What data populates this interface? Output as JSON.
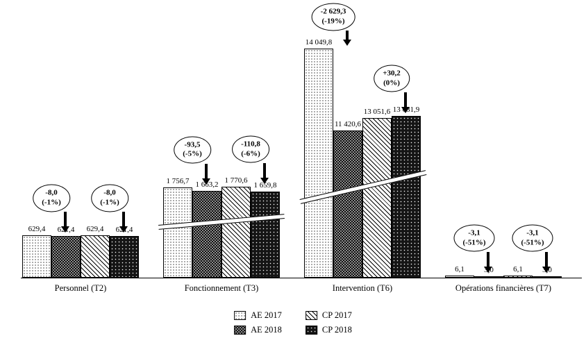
{
  "chart_data": {
    "type": "bar",
    "title": "",
    "categories": [
      "Personnel (T2)",
      "Fonctionnement (T3)",
      "Intervention (T6)",
      "Opérations financières (T7)"
    ],
    "series": [
      {
        "name": "AE 2017",
        "pattern": "ae2017",
        "values": [
          629.4,
          1756.7,
          14049.8,
          6.1
        ],
        "labels": [
          "629,4",
          "1 756,7",
          "14 049,8",
          "6,1"
        ]
      },
      {
        "name": "AE 2018",
        "pattern": "ae2018",
        "values": [
          621.4,
          1663.2,
          11420.6,
          3.0
        ],
        "labels": [
          "621,4",
          "1 663,2",
          "11 420,6",
          "3,0"
        ]
      },
      {
        "name": "CP 2017",
        "pattern": "cp2017",
        "values": [
          629.4,
          1770.6,
          13051.6,
          6.1
        ],
        "labels": [
          "629,4",
          "1 770,6",
          "13 051,6",
          "6,1"
        ]
      },
      {
        "name": "CP 2018",
        "pattern": "cp2018",
        "values": [
          621.4,
          1659.8,
          13081.9,
          3.0
        ],
        "labels": [
          "621,4",
          "1 659,8",
          "13 081,9",
          "3,0"
        ]
      }
    ],
    "annotations": [
      {
        "category": "Personnel (T2)",
        "pair": "AE",
        "delta": "-8,0",
        "pct": "(-1%)"
      },
      {
        "category": "Personnel (T2)",
        "pair": "CP",
        "delta": "-8,0",
        "pct": "(-1%)"
      },
      {
        "category": "Fonctionnement (T3)",
        "pair": "AE",
        "delta": "-93,5",
        "pct": "(-5%)"
      },
      {
        "category": "Fonctionnement (T3)",
        "pair": "CP",
        "delta": "-110,8",
        "pct": "(-6%)"
      },
      {
        "category": "Intervention (T6)",
        "pair": "AE",
        "delta": "-2 629,3",
        "pct": "(-19%)"
      },
      {
        "category": "Intervention (T6)",
        "pair": "CP",
        "delta": "+30,2",
        "pct": "(0%)"
      },
      {
        "category": "Opérations financières (T7)",
        "pair": "AE",
        "delta": "-3,1",
        "pct": "(-51%)"
      },
      {
        "category": "Opérations financières (T7)",
        "pair": "CP",
        "delta": "-3,1",
        "pct": "(-51%)"
      }
    ],
    "legend": {
      "position": "bottom-center",
      "entries": [
        {
          "label": "AE 2017",
          "pattern": "ae2017"
        },
        {
          "label": "CP 2017",
          "pattern": "cp2017"
        },
        {
          "label": "AE 2018",
          "pattern": "ae2018"
        },
        {
          "label": "CP 2018",
          "pattern": "cp2018"
        }
      ]
    },
    "axis_break": true,
    "colors": {
      "foreground": "#000000",
      "background": "#ffffff",
      "bar_dark": "#151515",
      "bar_gray": "#8d8d8d"
    }
  }
}
